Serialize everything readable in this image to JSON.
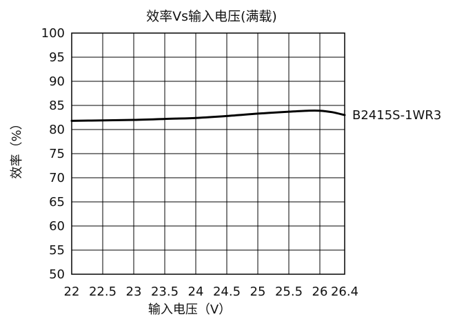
{
  "chart_data": {
    "type": "line",
    "title": "效率Vs输入电压(满载)",
    "xlabel": "输入电压（V）",
    "ylabel": "效率（%）",
    "xlim": [
      22,
      26.4
    ],
    "ylim": [
      50,
      100
    ],
    "x_ticks": [
      22,
      22.5,
      23,
      23.5,
      24,
      24.5,
      25,
      25.5,
      26,
      26.4
    ],
    "x_tick_labels": [
      "22",
      "22.5",
      "23",
      "23.5",
      "24",
      "24.5",
      "25",
      "25.5",
      "26",
      "26.4"
    ],
    "y_ticks": [
      50,
      55,
      60,
      65,
      70,
      75,
      80,
      85,
      90,
      95,
      100
    ],
    "y_tick_labels": [
      "50",
      "55",
      "60",
      "65",
      "70",
      "75",
      "80",
      "85",
      "90",
      "95",
      "100"
    ],
    "grid": true,
    "series": [
      {
        "name": "B2415S-1WR3",
        "x": [
          22,
          22.5,
          23,
          23.5,
          24,
          24.5,
          25,
          25.5,
          25.8,
          26,
          26.2,
          26.4
        ],
        "y": [
          81.8,
          81.9,
          82.0,
          82.2,
          82.4,
          82.8,
          83.3,
          83.7,
          83.9,
          83.9,
          83.6,
          83.0
        ]
      }
    ]
  }
}
